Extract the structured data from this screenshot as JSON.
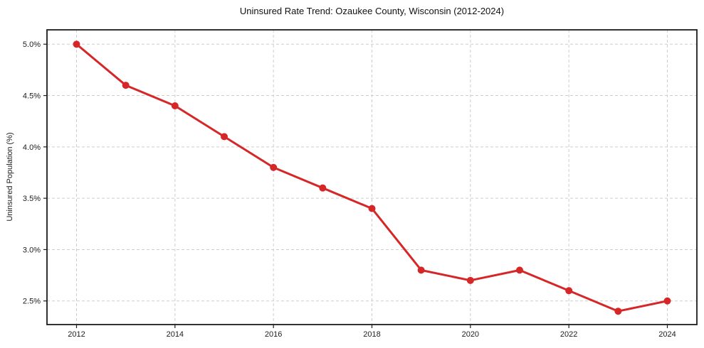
{
  "chart": {
    "title": "Uninsured Rate Trend: Ozaukee County, Wisconsin (2012-2024)",
    "y_axis_label": "Uninsured Population (%)"
  },
  "chart_data": {
    "type": "line",
    "title": "Uninsured Rate Trend: Ozaukee County, Wisconsin (2012-2024)",
    "xlabel": "",
    "ylabel": "Uninsured Population (%)",
    "x": [
      2012,
      2013,
      2014,
      2015,
      2016,
      2017,
      2018,
      2019,
      2020,
      2021,
      2022,
      2023,
      2024
    ],
    "values": [
      5.0,
      4.6,
      4.4,
      4.1,
      3.8,
      3.6,
      3.4,
      2.8,
      2.7,
      2.8,
      2.6,
      2.4,
      2.5
    ],
    "xlim": [
      2011.4,
      2024.6
    ],
    "ylim": [
      2.27,
      5.14
    ],
    "xticks": [
      2012,
      2014,
      2016,
      2018,
      2020,
      2022,
      2024
    ],
    "xtick_labels": [
      "2012",
      "2014",
      "2016",
      "2018",
      "2020",
      "2022",
      "2024"
    ],
    "yticks": [
      2.5,
      3.0,
      3.5,
      4.0,
      4.5,
      5.0
    ],
    "ytick_labels": [
      "2.5%",
      "3.0%",
      "3.5%",
      "4.0%",
      "4.5%",
      "5.0%"
    ],
    "grid": true,
    "grid_style": "dashed",
    "legend": false,
    "line_width": 3,
    "marker": "circle",
    "marker_size": 5,
    "colors": {
      "line": "#d62728",
      "marker": "#d62728",
      "grid": "#cdcdcd",
      "frame": "#1c1c1c",
      "tick_label": "#1c1c1c",
      "title": "#111111",
      "background": "#ffffff"
    }
  }
}
